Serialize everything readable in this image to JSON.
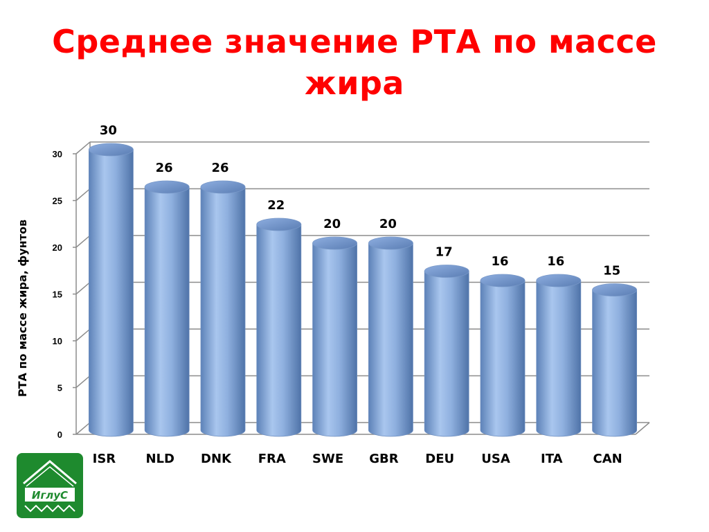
{
  "title": "Среднее значение РТА по массе жира",
  "logo": {
    "text": "ИглуС",
    "color": "#1e8a2e"
  },
  "chart_data": {
    "type": "bar",
    "title": "Среднее значение РТА по массе жира",
    "categories": [
      "ISR",
      "NLD",
      "DNK",
      "FRA",
      "SWE",
      "GBR",
      "DEU",
      "USA",
      "ITA",
      "CAN"
    ],
    "values": [
      30,
      26,
      26,
      22,
      20,
      20,
      17,
      16,
      16,
      15
    ],
    "data_labels": [
      "30",
      "26",
      "26",
      "22",
      "20",
      "20",
      "17",
      "16",
      "16",
      "15"
    ],
    "ylabel": "РТА по массе жира, фунтов",
    "xlabel": "",
    "ylim": [
      0,
      30
    ],
    "yticks": [
      0,
      5,
      10,
      15,
      20,
      25,
      30
    ],
    "grid": true,
    "style": "3d-cylinder",
    "bar_color": "#8fb4e3"
  }
}
